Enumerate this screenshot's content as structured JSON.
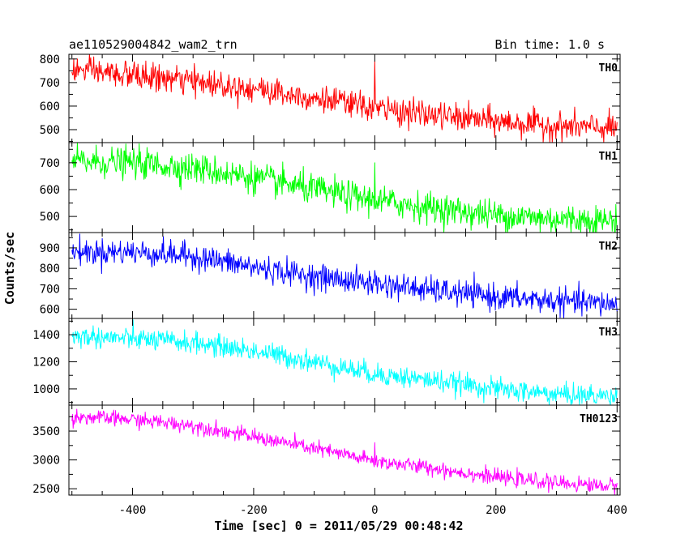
{
  "chart_data": {
    "type": "line",
    "title": "ae110529004842_wam2_trn",
    "bin_time": "Bin time: 1.0 s",
    "xlabel": "Time [sec] 0 = 2011/05/29 00:48:42",
    "ylabel": "Counts/sec",
    "xlim": [
      -505,
      405
    ],
    "x_ticks": [
      -400,
      -200,
      0,
      200,
      400
    ],
    "grid": false,
    "panels": [
      {
        "name": "TH0",
        "color": "#ff0000",
        "ylim": [
          445,
          820
        ],
        "y_ticks": [
          500,
          600,
          700,
          800
        ],
        "series": {
          "x": [
            -500,
            -400,
            -300,
            -200,
            -100,
            0,
            100,
            200,
            300,
            400
          ],
          "values": [
            755,
            730,
            705,
            675,
            635,
            590,
            560,
            535,
            515,
            505
          ]
        },
        "spike": {
          "x": 0,
          "value": 790
        }
      },
      {
        "name": "TH1",
        "color": "#00ff00",
        "ylim": [
          440,
          775
        ],
        "y_ticks": [
          500,
          600,
          700
        ],
        "series": {
          "x": [
            -500,
            -400,
            -300,
            -200,
            -100,
            0,
            100,
            200,
            300,
            400
          ],
          "values": [
            705,
            700,
            680,
            645,
            600,
            560,
            530,
            505,
            490,
            485
          ]
        },
        "spike": {
          "x": 0,
          "value": 700
        }
      },
      {
        "name": "TH2",
        "color": "#0000ff",
        "ylim": [
          555,
          975
        ],
        "y_ticks": [
          600,
          700,
          800,
          900
        ],
        "series": {
          "x": [
            -500,
            -400,
            -300,
            -200,
            -100,
            0,
            100,
            200,
            300,
            400
          ],
          "values": [
            880,
            880,
            860,
            805,
            760,
            725,
            690,
            660,
            640,
            625
          ]
        },
        "spike": {
          "x": 0,
          "value": 790
        }
      },
      {
        "name": "TH3",
        "color": "#00ffff",
        "ylim": [
          880,
          1520
        ],
        "y_ticks": [
          1000,
          1200,
          1400
        ],
        "series": {
          "x": [
            -500,
            -400,
            -300,
            -200,
            -100,
            0,
            100,
            200,
            300,
            400
          ],
          "values": [
            1390,
            1370,
            1340,
            1280,
            1200,
            1110,
            1060,
            1000,
            960,
            945
          ]
        },
        "spike": {
          "x": 0,
          "value": 1140
        }
      },
      {
        "name": "TH0123",
        "color": "#ff00ff",
        "ylim": [
          2390,
          3950
        ],
        "y_ticks": [
          2500,
          3000,
          3500
        ],
        "series": {
          "x": [
            -500,
            -400,
            -300,
            -200,
            -100,
            0,
            100,
            200,
            300,
            400
          ],
          "values": [
            3750,
            3700,
            3600,
            3400,
            3200,
            2980,
            2850,
            2700,
            2600,
            2540
          ]
        },
        "spike": {
          "x": 0,
          "value": 3300
        }
      }
    ]
  }
}
